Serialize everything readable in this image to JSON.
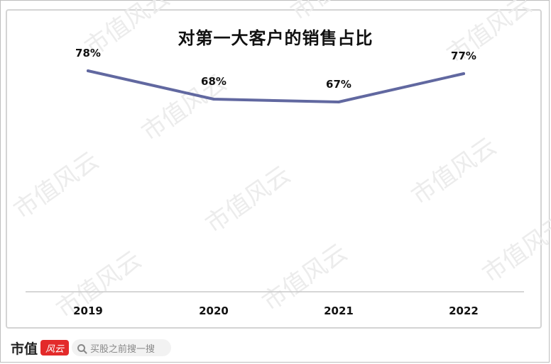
{
  "watermark": "市值风云",
  "footer": {
    "logo_text": "市值",
    "logo_mark": "风云",
    "search_placeholder": "买股之前搜一搜"
  },
  "colors": {
    "line": "#6168a0",
    "axis": "#c8c8c8"
  },
  "chart_data": {
    "type": "line",
    "title": "对第一大客户的销售占比",
    "categories": [
      "2019",
      "2020",
      "2021",
      "2022"
    ],
    "series": [
      {
        "values": [
          78,
          68,
          67,
          77
        ],
        "labels": [
          "78%",
          "68%",
          "67%",
          "77%"
        ]
      }
    ],
    "ylim": [
      0,
      100
    ],
    "grid": false,
    "legend": "none"
  }
}
